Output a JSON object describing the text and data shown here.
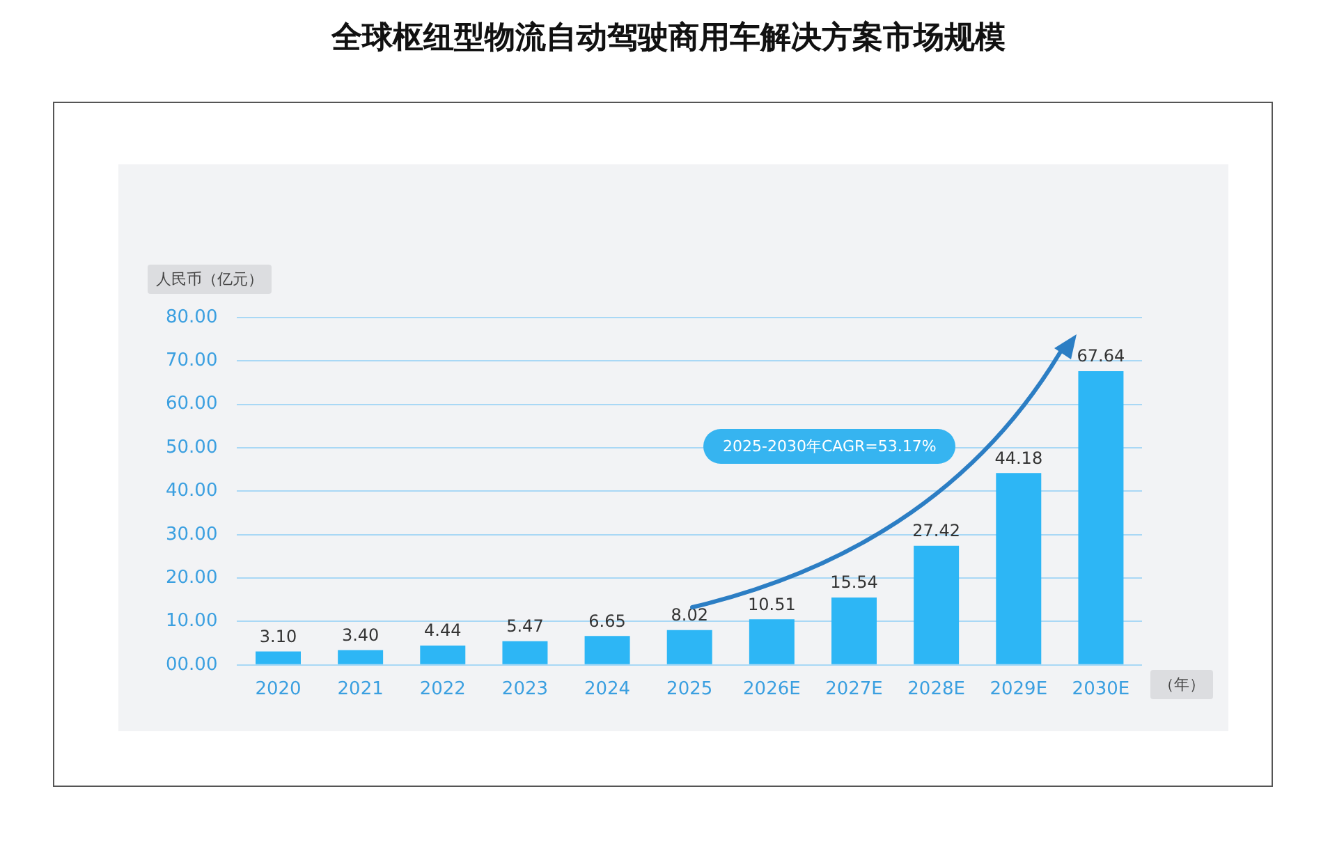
{
  "chart_data": {
    "type": "bar",
    "title": "全球枢纽型物流自动驾驶商用车解决方案市场规模",
    "ylabel": "人民币（亿元）",
    "xlabel": "（年）",
    "annotations": [
      "2025-2030年CAGR=53.17%"
    ],
    "categories": [
      "2020",
      "2021",
      "2022",
      "2023",
      "2024",
      "2025",
      "2026E",
      "2027E",
      "2028E",
      "2029E",
      "2030E"
    ],
    "values": [
      3.1,
      3.4,
      4.44,
      5.47,
      6.65,
      8.02,
      10.51,
      15.54,
      27.42,
      44.18,
      67.64
    ],
    "value_labels": [
      "3.10",
      "3.40",
      "4.44",
      "5.47",
      "6.65",
      "8.02",
      "10.51",
      "15.54",
      "27.42",
      "44.18",
      "67.64"
    ],
    "color": "#2db6f5",
    "ylim": [
      0,
      80
    ],
    "yticks": [
      {
        "value": 0,
        "label": "00.00"
      },
      {
        "value": 10,
        "label": "10.00"
      },
      {
        "value": 20,
        "label": "20.00"
      },
      {
        "value": 30,
        "label": "30.00"
      },
      {
        "value": 40,
        "label": "40.00"
      },
      {
        "value": 50,
        "label": "50.00"
      },
      {
        "value": 60,
        "label": "60.00"
      },
      {
        "value": 70,
        "label": "70.00"
      },
      {
        "value": 80,
        "label": "80.00"
      }
    ],
    "grid": "y",
    "legend": false
  }
}
